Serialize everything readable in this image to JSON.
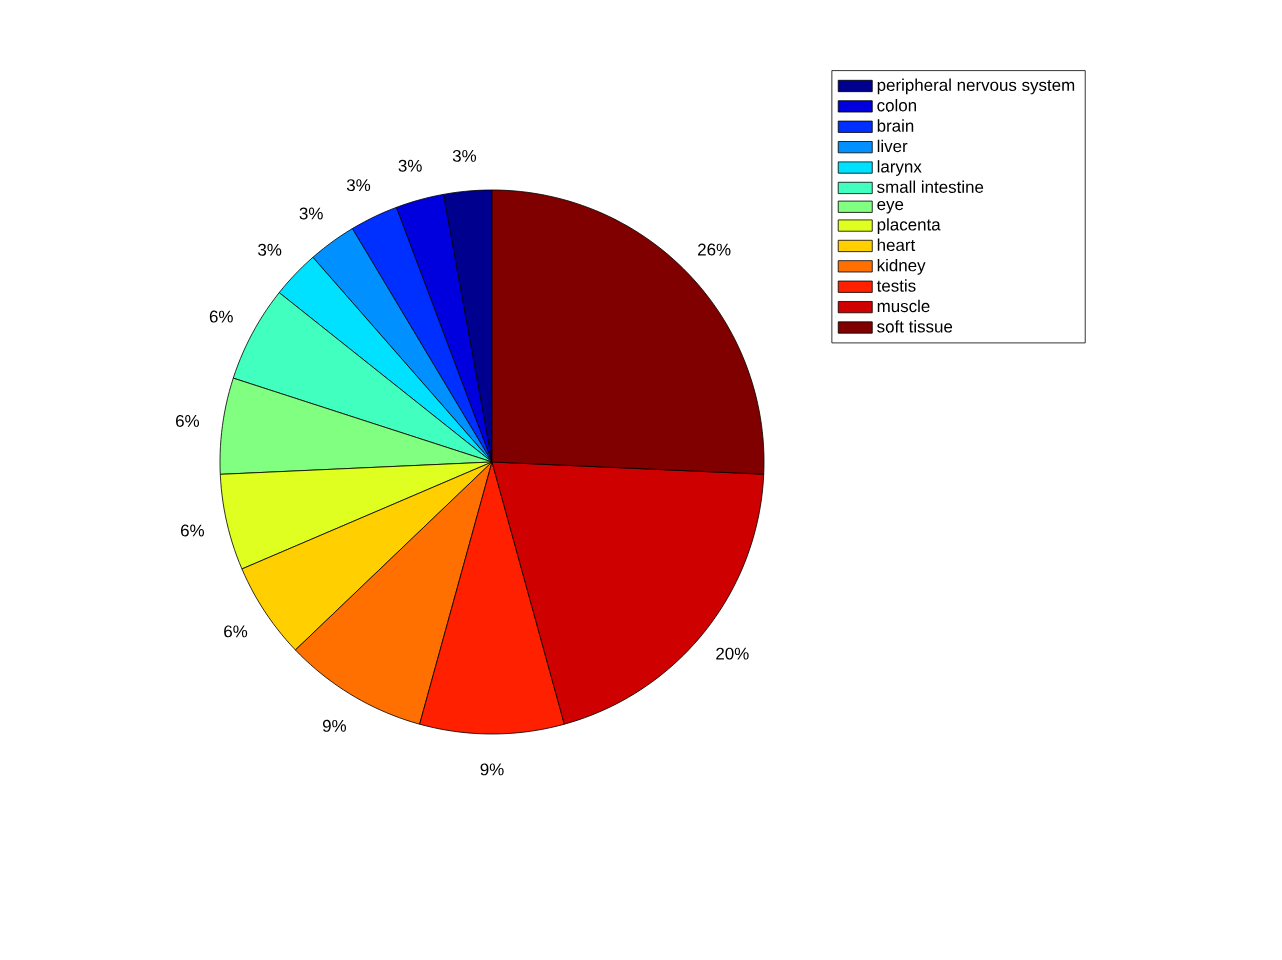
{
  "chart_data": {
    "type": "pie",
    "categories": [
      "peripheral nervous system",
      "colon",
      "brain",
      "liver",
      "larynx",
      "small intestine",
      "eye",
      "placenta",
      "heart",
      "kidney",
      "testis",
      "muscle",
      "soft tissue"
    ],
    "values": [
      2.86,
      2.86,
      2.86,
      2.86,
      2.86,
      5.71,
      5.71,
      5.71,
      5.71,
      8.57,
      8.57,
      20.0,
      25.71
    ],
    "value_labels": [
      "3%",
      "3%",
      "3%",
      "3%",
      "3%",
      "6%",
      "6%",
      "6%",
      "6%",
      "9%",
      "9%",
      "20%",
      "26%"
    ],
    "colors": [
      "#00008f",
      "#0000df",
      "#0030ff",
      "#0090ff",
      "#00e0ff",
      "#40ffbf",
      "#80ff80",
      "#dfff20",
      "#ffcf00",
      "#ff7000",
      "#ff2000",
      "#cf0000",
      "#800000"
    ],
    "legend": "top right"
  }
}
